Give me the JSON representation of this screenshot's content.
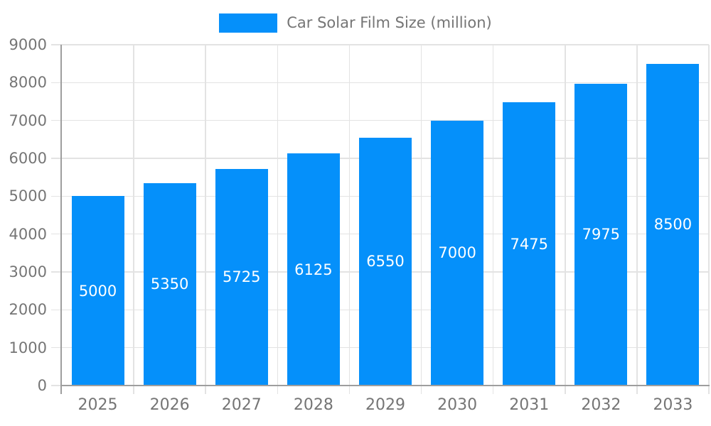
{
  "legend": {
    "label": "Car Solar Film Size (million)"
  },
  "chart_data": {
    "type": "bar",
    "title": "Car Solar Film Size (million)",
    "series_name": "Car Solar Film Size (million)",
    "categories": [
      "2025",
      "2026",
      "2027",
      "2028",
      "2029",
      "2030",
      "2031",
      "2032",
      "2033"
    ],
    "values": [
      5000,
      5350,
      5725,
      6125,
      6550,
      7000,
      7475,
      7975,
      8500
    ],
    "bar_value_labels": [
      "5000",
      "5350",
      "5725",
      "6125",
      "6550",
      "7000",
      "7475",
      "7975",
      "8500"
    ],
    "xlabel": "",
    "ylabel": "",
    "ylim": [
      0,
      9000
    ],
    "y_tick_step": 1000,
    "y_tick_labels": [
      "0",
      "1000",
      "2000",
      "3000",
      "4000",
      "5000",
      "6000",
      "7000",
      "8000",
      "9000"
    ],
    "grid": true,
    "legend_position": "top",
    "colors": {
      "bar": "#0590fa",
      "bar_value_label": "#ffffff",
      "axis_line": "#9e9e9e",
      "grid_line": "#e3e3e3",
      "axis_text": "#757575",
      "background": "#ffffff"
    }
  }
}
